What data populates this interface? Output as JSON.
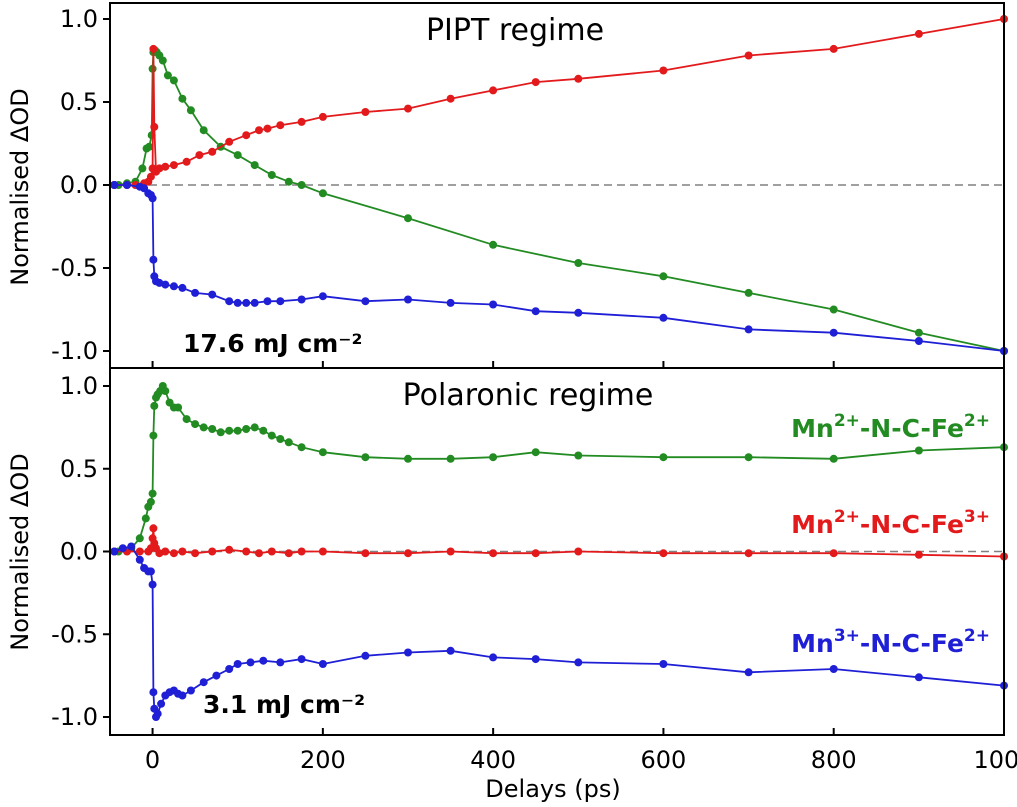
{
  "chart_data": [
    {
      "type": "line",
      "title": "PIPT regime",
      "annotation": "17.6 mJ cm⁻²",
      "xlabel": "",
      "ylabel": "Normalised ΔOD",
      "xlim": [
        -50,
        1000
      ],
      "ylim": [
        -1.05,
        1.08
      ],
      "x_ticks": [
        "0",
        "200",
        "400",
        "600",
        "800",
        "1000"
      ],
      "y_ticks": [
        "-1.0",
        "-0.5",
        "0.0",
        "0.5",
        "1.0"
      ],
      "zero_line": true,
      "series": [
        {
          "color": "#228b22",
          "points": [
            [
              -45,
              0.0
            ],
            [
              -40,
              0.0
            ],
            [
              -30,
              0.01
            ],
            [
              -20,
              0.02
            ],
            [
              -12,
              0.1
            ],
            [
              -7,
              0.22
            ],
            [
              -4,
              0.23
            ],
            [
              -1,
              0.3
            ],
            [
              0,
              0.7
            ],
            [
              1,
              0.8
            ],
            [
              3,
              0.81
            ],
            [
              5,
              0.8
            ],
            [
              8,
              0.78
            ],
            [
              12,
              0.75
            ],
            [
              18,
              0.66
            ],
            [
              25,
              0.63
            ],
            [
              35,
              0.52
            ],
            [
              45,
              0.45
            ],
            [
              60,
              0.33
            ],
            [
              80,
              0.23
            ],
            [
              100,
              0.18
            ],
            [
              120,
              0.12
            ],
            [
              140,
              0.06
            ],
            [
              160,
              0.02
            ],
            [
              175,
              0.0
            ],
            [
              200,
              -0.05
            ],
            [
              300,
              -0.2
            ],
            [
              400,
              -0.36
            ],
            [
              500,
              -0.47
            ],
            [
              600,
              -0.55
            ],
            [
              700,
              -0.65
            ],
            [
              800,
              -0.75
            ],
            [
              900,
              -0.89
            ],
            [
              1000,
              -1.0
            ]
          ]
        },
        {
          "color": "#e31a1c",
          "points": [
            [
              -45,
              0.0
            ],
            [
              -30,
              0.0
            ],
            [
              -20,
              0.0
            ],
            [
              -10,
              0.01
            ],
            [
              -5,
              0.02
            ],
            [
              -2,
              0.05
            ],
            [
              0,
              0.1
            ],
            [
              1,
              0.82
            ],
            [
              2,
              0.35
            ],
            [
              4,
              0.08
            ],
            [
              8,
              0.1
            ],
            [
              15,
              0.11
            ],
            [
              25,
              0.12
            ],
            [
              40,
              0.14
            ],
            [
              55,
              0.18
            ],
            [
              70,
              0.2
            ],
            [
              90,
              0.26
            ],
            [
              110,
              0.3
            ],
            [
              125,
              0.33
            ],
            [
              135,
              0.34
            ],
            [
              150,
              0.36
            ],
            [
              175,
              0.38
            ],
            [
              200,
              0.41
            ],
            [
              250,
              0.44
            ],
            [
              300,
              0.46
            ],
            [
              350,
              0.52
            ],
            [
              400,
              0.57
            ],
            [
              450,
              0.62
            ],
            [
              500,
              0.64
            ],
            [
              600,
              0.69
            ],
            [
              700,
              0.78
            ],
            [
              800,
              0.82
            ],
            [
              900,
              0.91
            ],
            [
              1000,
              1.0
            ]
          ]
        },
        {
          "color": "#1f1fd6",
          "points": [
            [
              -45,
              0.0
            ],
            [
              -30,
              0.0
            ],
            [
              -15,
              -0.01
            ],
            [
              -10,
              -0.02
            ],
            [
              -5,
              -0.05
            ],
            [
              -2,
              -0.06
            ],
            [
              0,
              -0.08
            ],
            [
              1,
              -0.45
            ],
            [
              2,
              -0.55
            ],
            [
              4,
              -0.58
            ],
            [
              8,
              -0.59
            ],
            [
              15,
              -0.6
            ],
            [
              25,
              -0.61
            ],
            [
              35,
              -0.62
            ],
            [
              50,
              -0.65
            ],
            [
              70,
              -0.66
            ],
            [
              90,
              -0.7
            ],
            [
              100,
              -0.71
            ],
            [
              110,
              -0.71
            ],
            [
              120,
              -0.71
            ],
            [
              135,
              -0.7
            ],
            [
              150,
              -0.7
            ],
            [
              175,
              -0.69
            ],
            [
              200,
              -0.67
            ],
            [
              250,
              -0.7
            ],
            [
              300,
              -0.69
            ],
            [
              350,
              -0.71
            ],
            [
              400,
              -0.72
            ],
            [
              450,
              -0.76
            ],
            [
              500,
              -0.77
            ],
            [
              600,
              -0.8
            ],
            [
              700,
              -0.87
            ],
            [
              800,
              -0.89
            ],
            [
              900,
              -0.94
            ],
            [
              1000,
              -1.0
            ]
          ]
        }
      ]
    },
    {
      "type": "line",
      "title": "Polaronic regime",
      "annotation": "3.1 mJ cm⁻²",
      "xlabel": "Delays (ps)",
      "ylabel": "Normalised ΔOD",
      "xlim": [
        -50,
        1000
      ],
      "ylim": [
        -1.05,
        1.08
      ],
      "x_ticks": [
        "0",
        "200",
        "400",
        "600",
        "800",
        "1000"
      ],
      "y_ticks": [
        "-1.0",
        "-0.5",
        "0.0",
        "0.5",
        "1.0"
      ],
      "zero_line": true,
      "legend": [
        {
          "ion1": "Mn",
          "ch1": "2+",
          "mid": "-N-C-",
          "ion2": "Fe",
          "ch2": "2+",
          "color": "#228b22"
        },
        {
          "ion1": "Mn",
          "ch1": "2+",
          "mid": "-N-C-",
          "ion2": "Fe",
          "ch2": "3+",
          "color": "#e31a1c"
        },
        {
          "ion1": "Mn",
          "ch1": "3+",
          "mid": "-N-C-",
          "ion2": "Fe",
          "ch2": "2+",
          "color": "#1f1fd6"
        }
      ],
      "series": [
        {
          "color": "#228b22",
          "points": [
            [
              -40,
              0.0
            ],
            [
              -25,
              0.02
            ],
            [
              -15,
              0.08
            ],
            [
              -8,
              0.2
            ],
            [
              -5,
              0.27
            ],
            [
              -2,
              0.3
            ],
            [
              0,
              0.35
            ],
            [
              1,
              0.7
            ],
            [
              2,
              0.88
            ],
            [
              4,
              0.93
            ],
            [
              6,
              0.95
            ],
            [
              9,
              0.97
            ],
            [
              12,
              1.0
            ],
            [
              15,
              0.97
            ],
            [
              20,
              0.9
            ],
            [
              25,
              0.87
            ],
            [
              30,
              0.87
            ],
            [
              40,
              0.8
            ],
            [
              50,
              0.77
            ],
            [
              60,
              0.75
            ],
            [
              70,
              0.74
            ],
            [
              80,
              0.72
            ],
            [
              90,
              0.73
            ],
            [
              100,
              0.73
            ],
            [
              110,
              0.74
            ],
            [
              120,
              0.75
            ],
            [
              130,
              0.73
            ],
            [
              140,
              0.7
            ],
            [
              150,
              0.68
            ],
            [
              160,
              0.66
            ],
            [
              175,
              0.63
            ],
            [
              200,
              0.6
            ],
            [
              250,
              0.57
            ],
            [
              300,
              0.56
            ],
            [
              350,
              0.56
            ],
            [
              400,
              0.57
            ],
            [
              450,
              0.6
            ],
            [
              500,
              0.58
            ],
            [
              600,
              0.57
            ],
            [
              700,
              0.57
            ],
            [
              800,
              0.56
            ],
            [
              900,
              0.61
            ],
            [
              1000,
              0.63
            ]
          ]
        },
        {
          "color": "#e31a1c",
          "points": [
            [
              -45,
              0.0
            ],
            [
              -30,
              0.0
            ],
            [
              -15,
              0.0
            ],
            [
              -5,
              0.0
            ],
            [
              -2,
              0.02
            ],
            [
              0,
              0.08
            ],
            [
              1,
              0.14
            ],
            [
              2,
              0.05
            ],
            [
              4,
              0.02
            ],
            [
              8,
              -0.01
            ],
            [
              15,
              0.0
            ],
            [
              25,
              -0.01
            ],
            [
              35,
              0.0
            ],
            [
              50,
              -0.01
            ],
            [
              70,
              0.0
            ],
            [
              90,
              0.01
            ],
            [
              110,
              0.0
            ],
            [
              125,
              -0.01
            ],
            [
              140,
              0.0
            ],
            [
              160,
              -0.01
            ],
            [
              175,
              0.0
            ],
            [
              200,
              0.0
            ],
            [
              250,
              -0.01
            ],
            [
              300,
              -0.01
            ],
            [
              350,
              0.0
            ],
            [
              400,
              -0.01
            ],
            [
              450,
              -0.01
            ],
            [
              500,
              0.0
            ],
            [
              600,
              -0.01
            ],
            [
              700,
              -0.01
            ],
            [
              800,
              -0.01
            ],
            [
              900,
              -0.02
            ],
            [
              1000,
              -0.03
            ]
          ]
        },
        {
          "color": "#1f1fd6",
          "points": [
            [
              -45,
              0.0
            ],
            [
              -35,
              0.02
            ],
            [
              -25,
              0.03
            ],
            [
              -15,
              -0.05
            ],
            [
              -10,
              -0.1
            ],
            [
              -5,
              -0.12
            ],
            [
              -2,
              -0.12
            ],
            [
              0,
              -0.2
            ],
            [
              1,
              -0.85
            ],
            [
              2,
              -0.95
            ],
            [
              4,
              -1.0
            ],
            [
              6,
              -0.98
            ],
            [
              10,
              -0.92
            ],
            [
              15,
              -0.87
            ],
            [
              20,
              -0.85
            ],
            [
              25,
              -0.84
            ],
            [
              30,
              -0.86
            ],
            [
              35,
              -0.87
            ],
            [
              45,
              -0.84
            ],
            [
              60,
              -0.79
            ],
            [
              75,
              -0.75
            ],
            [
              90,
              -0.71
            ],
            [
              100,
              -0.68
            ],
            [
              115,
              -0.67
            ],
            [
              130,
              -0.66
            ],
            [
              150,
              -0.67
            ],
            [
              175,
              -0.65
            ],
            [
              200,
              -0.68
            ],
            [
              250,
              -0.63
            ],
            [
              300,
              -0.61
            ],
            [
              350,
              -0.6
            ],
            [
              400,
              -0.64
            ],
            [
              450,
              -0.65
            ],
            [
              500,
              -0.67
            ],
            [
              600,
              -0.68
            ],
            [
              700,
              -0.73
            ],
            [
              800,
              -0.71
            ],
            [
              900,
              -0.76
            ],
            [
              1000,
              -0.81
            ]
          ]
        }
      ]
    }
  ]
}
